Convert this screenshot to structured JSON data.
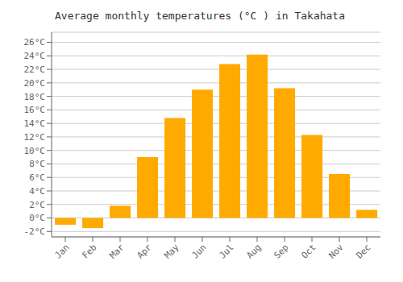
{
  "chart_data": {
    "type": "bar",
    "title": "Average monthly temperatures (°C ) in Takahata",
    "categories": [
      "Jan",
      "Feb",
      "Mar",
      "Apr",
      "May",
      "Jun",
      "Jul",
      "Aug",
      "Sep",
      "Oct",
      "Nov",
      "Dec"
    ],
    "values": [
      -1.0,
      -1.5,
      1.8,
      9.0,
      14.8,
      19.0,
      22.8,
      24.2,
      19.2,
      12.3,
      6.5,
      1.2
    ],
    "color": "#FFAA00",
    "ylim": [
      -2.8,
      27.5
    ],
    "yticks": [
      {
        "value": -2,
        "label": "-2°C"
      },
      {
        "value": 0,
        "label": "0°C"
      },
      {
        "value": 2,
        "label": "2°C"
      },
      {
        "value": 4,
        "label": "4°C"
      },
      {
        "value": 6,
        "label": "6°C"
      },
      {
        "value": 8,
        "label": "8°C"
      },
      {
        "value": 10,
        "label": "10°C"
      },
      {
        "value": 12,
        "label": "12°C"
      },
      {
        "value": 14,
        "label": "14°C"
      },
      {
        "value": 16,
        "label": "16°C"
      },
      {
        "value": 18,
        "label": "18°C"
      },
      {
        "value": 20,
        "label": "20°C"
      },
      {
        "value": 22,
        "label": "22°C"
      },
      {
        "value": 24,
        "label": "24°C"
      },
      {
        "value": 26,
        "label": "26°C"
      }
    ],
    "grid": true
  }
}
